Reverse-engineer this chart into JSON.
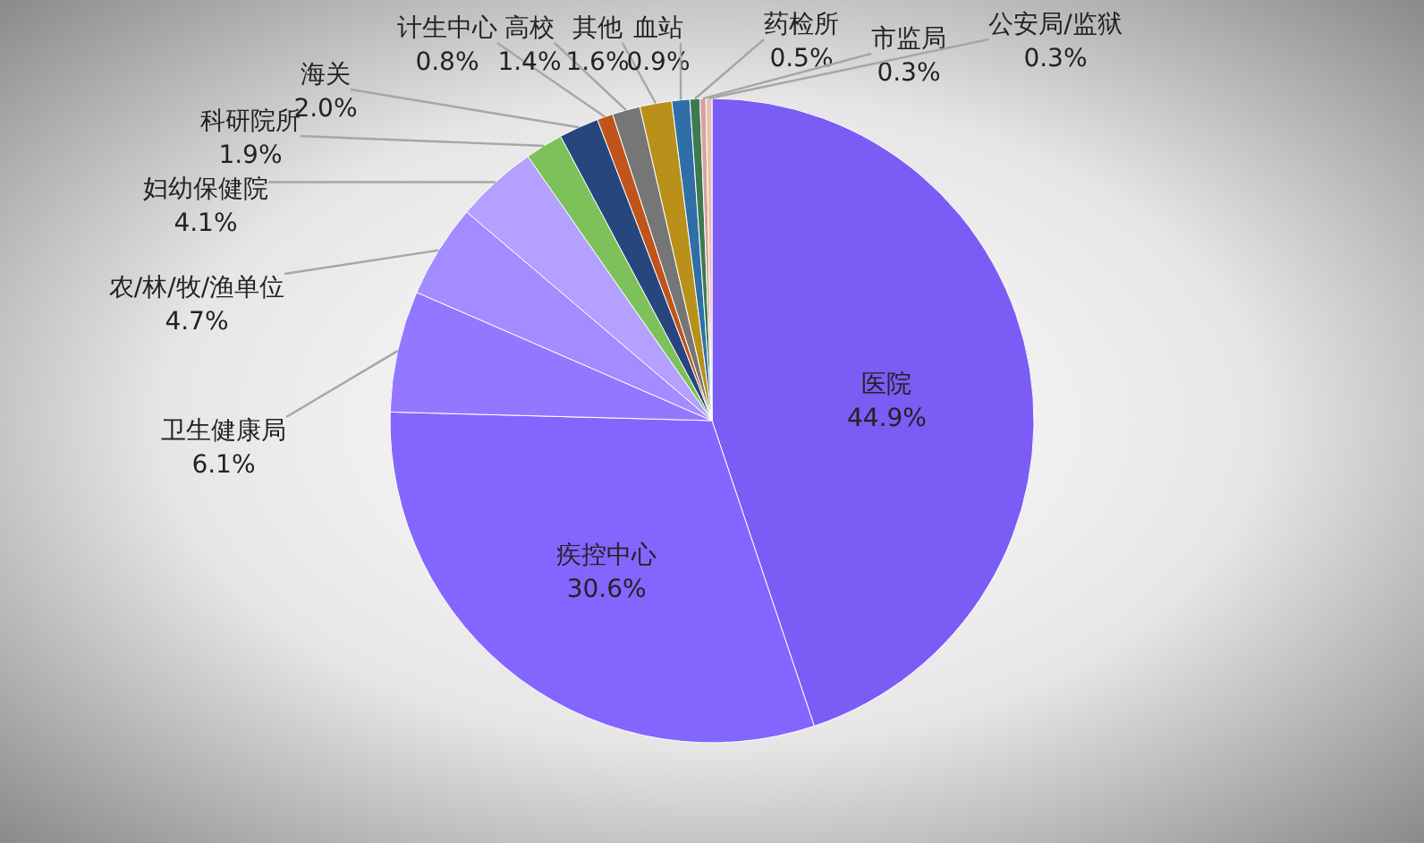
{
  "chart_data": {
    "type": "pie",
    "categories": [
      "医院",
      "疾控中心",
      "卫生健康局",
      "农/林/牧/渔单位",
      "妇幼保健院",
      "科研院所",
      "海关",
      "计生中心",
      "高校",
      "其他",
      "血站",
      "药检所",
      "市监局",
      "公安局/监狱"
    ],
    "values": [
      44.9,
      30.6,
      6.1,
      4.7,
      4.1,
      1.9,
      2.0,
      0.8,
      1.4,
      1.6,
      0.9,
      0.5,
      0.3,
      0.3
    ],
    "colors": [
      "#7b5cf5",
      "#8466ff",
      "#9378ff",
      "#a28cff",
      "#b3a0ff",
      "#7cc15a",
      "#27467e",
      "#c0541b",
      "#767676",
      "#b8901a",
      "#2f6fa8",
      "#3d7a4f",
      "#d9a0a0",
      "#e8c0b0"
    ],
    "value_labels": [
      "44.9%",
      "30.6%",
      "6.1%",
      "4.7%",
      "4.1%",
      "1.9%",
      "2.0%",
      "0.8%",
      "1.4%",
      "1.6%",
      "0.9%",
      "0.5%",
      "0.3%",
      "0.3%"
    ]
  }
}
